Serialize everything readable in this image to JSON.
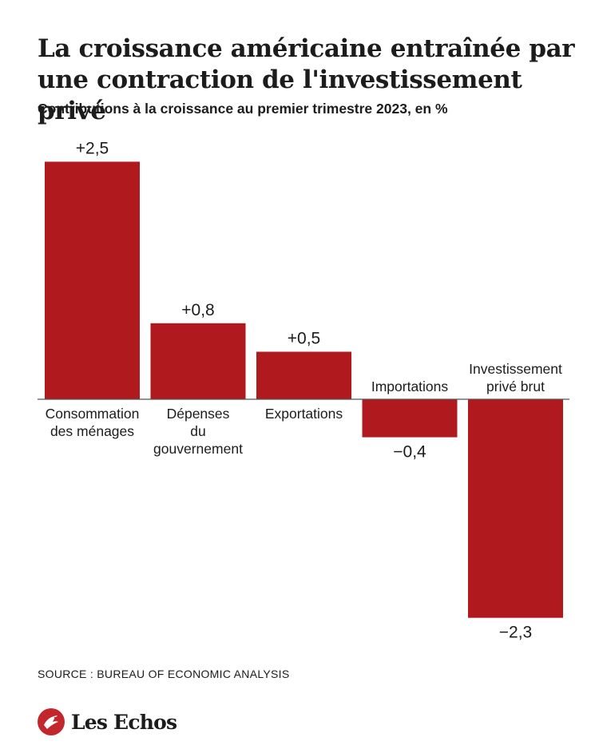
{
  "header": {
    "title": "La croissance américaine entraînée par une contraction de l'investissement privé",
    "subtitle": "Contributions à la croissance au premier trimestre 2023, en %"
  },
  "chart_data": {
    "type": "bar",
    "categories": [
      [
        "Consommation",
        "des ménages"
      ],
      [
        "Dépenses",
        "du",
        "gouvernement"
      ],
      [
        "Exportations"
      ],
      [
        "Importations"
      ],
      [
        "Investissement",
        "privé brut"
      ]
    ],
    "values": [
      2.5,
      0.8,
      0.5,
      -0.4,
      -2.3
    ],
    "value_labels": [
      "+2,5",
      "+0,8",
      "+0,5",
      "−0,4",
      "−2,3"
    ],
    "bar_color": "#b0191e",
    "axis_color": "#555555",
    "title": "La croissance américaine entraînée par une contraction de l'investissement privé",
    "subtitle": "Contributions à la croissance au premier trimestre 2023, en %",
    "ylim": [
      -2.3,
      2.5
    ],
    "grid": false,
    "legend": "none"
  },
  "footer": {
    "source": "SOURCE :  BUREAU OF ECONOMIC ANALYSIS",
    "brand": "Les Echos",
    "brand_color": "#c1272d"
  }
}
